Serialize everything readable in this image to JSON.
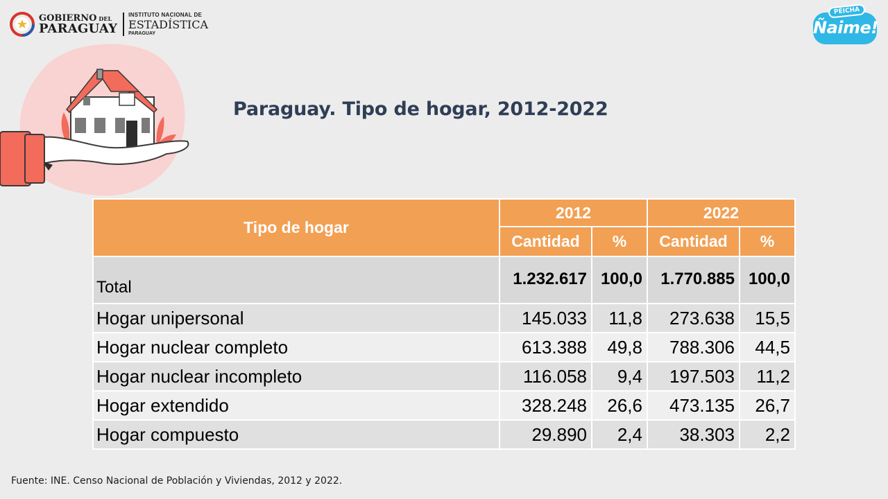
{
  "header": {
    "gov_line1": "GOBIERNO",
    "gov_line1_small": "DEL",
    "gov_line2": "PARAGUAY",
    "ine_line1": "INSTITUTO NACIONAL DE",
    "ine_line2": "ESTADÍSTICA",
    "ine_line3": "PARAGUAY",
    "campaign_tag": "PÉICHA",
    "campaign_word": "Ñaime!"
  },
  "title": "Paraguay. Tipo de hogar, 2012-2022",
  "table": {
    "type_header": "Tipo de hogar",
    "years": [
      "2012",
      "2022"
    ],
    "sub_headers": [
      "Cantidad",
      "%",
      "Cantidad",
      "%"
    ],
    "total": {
      "label": "Total",
      "values": [
        "1.232.617",
        "100,0",
        "1.770.885",
        "100,0"
      ]
    },
    "rows": [
      {
        "label": "Hogar unipersonal",
        "values": [
          "145.033",
          "11,8",
          "273.638",
          "15,5"
        ]
      },
      {
        "label": "Hogar nuclear completo",
        "values": [
          "613.388",
          "49,8",
          "788.306",
          "44,5"
        ]
      },
      {
        "label": "Hogar nuclear incompleto",
        "values": [
          "116.058",
          "9,4",
          "197.503",
          "11,2"
        ]
      },
      {
        "label": "Hogar extendido",
        "values": [
          "328.248",
          "26,6",
          "473.135",
          "26,7"
        ]
      },
      {
        "label": "Hogar compuesto",
        "values": [
          "29.890",
          "2,4",
          "38.303",
          "2,2"
        ]
      }
    ]
  },
  "footer": {
    "source": "Fuente: INE. Censo Nacional de Población y Viviendas, 2012 y 2022."
  },
  "colors": {
    "header_bg": "#f2a054",
    "title": "#2f3e56",
    "total_bg": "#d8d8d8",
    "illustration_accent": "#f26b5b"
  }
}
